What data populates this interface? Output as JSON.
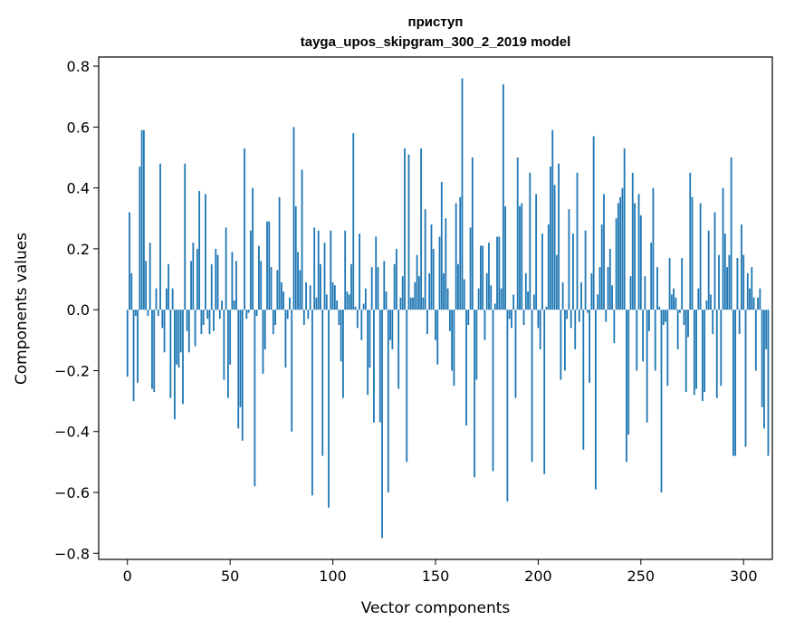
{
  "chart_data": {
    "type": "bar",
    "title": "приступ",
    "subtitle": "tayga_upos_skipgram_300_2_2019 model",
    "xlabel": "Vector components",
    "ylabel": "Components values",
    "xlim": [
      -14,
      314
    ],
    "ylim": [
      -0.82,
      0.83
    ],
    "xticks": [
      0,
      50,
      100,
      150,
      200,
      250,
      300
    ],
    "yticks": [
      -0.8,
      -0.6,
      -0.4,
      -0.2,
      0.0,
      0.2,
      0.4,
      0.6,
      0.8
    ],
    "xtick_labels": [
      "0",
      "50",
      "100",
      "150",
      "200",
      "250",
      "300"
    ],
    "ytick_labels": [
      "−0.8",
      "−0.6",
      "−0.4",
      "−0.2",
      "0.0",
      "0.2",
      "0.4",
      "0.6",
      "0.8"
    ],
    "bar_color": "#1f77b4",
    "grid": false,
    "legend": "none",
    "values": [
      -0.22,
      0.32,
      0.12,
      -0.3,
      -0.02,
      -0.24,
      0.47,
      0.59,
      0.59,
      0.16,
      -0.02,
      0.22,
      -0.26,
      -0.27,
      0.07,
      -0.02,
      0.48,
      -0.06,
      -0.14,
      0.07,
      0.15,
      -0.29,
      0.07,
      -0.36,
      -0.18,
      -0.19,
      -0.14,
      -0.31,
      0.48,
      -0.07,
      -0.14,
      0.16,
      0.22,
      -0.12,
      0.2,
      0.39,
      -0.08,
      -0.05,
      0.38,
      -0.03,
      -0.08,
      0.15,
      -0.07,
      0.2,
      0.18,
      -0.03,
      0.03,
      -0.23,
      0.27,
      -0.29,
      -0.18,
      0.19,
      0.03,
      0.16,
      -0.39,
      -0.32,
      -0.43,
      0.53,
      -0.03,
      -0.01,
      0.26,
      0.4,
      -0.58,
      -0.02,
      0.21,
      0.16,
      -0.21,
      -0.13,
      0.29,
      0.29,
      0.14,
      -0.08,
      -0.05,
      0.13,
      0.37,
      0.09,
      0.06,
      -0.19,
      -0.03,
      0.04,
      -0.4,
      0.6,
      0.34,
      0.19,
      0.13,
      0.46,
      -0.05,
      0.09,
      -0.03,
      0.08,
      -0.61,
      0.27,
      0.04,
      0.26,
      0.15,
      -0.48,
      0.22,
      0.05,
      -0.65,
      0.26,
      0.09,
      0.08,
      0.03,
      -0.05,
      -0.17,
      -0.29,
      0.26,
      0.06,
      0.05,
      0.15,
      0.58,
      0.01,
      -0.06,
      0.25,
      -0.1,
      0.02,
      0.07,
      -0.28,
      -0.19,
      0.14,
      -0.37,
      0.24,
      0.14,
      -0.37,
      -0.75,
      0.16,
      0.06,
      -0.6,
      -0.1,
      -0.13,
      0.15,
      0.2,
      -0.26,
      0.04,
      0.11,
      0.53,
      -0.5,
      0.51,
      0.04,
      0.04,
      0.09,
      0.18,
      0.11,
      0.53,
      0.04,
      0.33,
      -0.08,
      0.12,
      0.28,
      0.2,
      -0.1,
      -0.18,
      0.24,
      0.42,
      0.12,
      0.3,
      0.07,
      -0.07,
      -0.2,
      -0.25,
      0.35,
      0.15,
      0.37,
      0.76,
      0.1,
      -0.38,
      -0.05,
      0.27,
      0.5,
      -0.55,
      -0.23,
      0.07,
      0.21,
      0.21,
      -0.1,
      0.12,
      0.22,
      0.08,
      -0.53,
      0.02,
      0.24,
      0.24,
      0.07,
      0.74,
      0.34,
      -0.63,
      -0.03,
      -0.06,
      0.05,
      -0.29,
      0.5,
      0.34,
      0.35,
      -0.05,
      0.12,
      0.06,
      0.45,
      -0.5,
      0.05,
      0.38,
      -0.06,
      -0.13,
      0.25,
      -0.54,
      0.01,
      0.28,
      0.47,
      0.59,
      0.41,
      0.18,
      0.48,
      -0.23,
      0.09,
      -0.2,
      -0.03,
      0.33,
      -0.06,
      0.25,
      -0.13,
      0.45,
      -0.04,
      0.09,
      -0.46,
      0.26,
      -0.01,
      -0.24,
      0.12,
      0.57,
      -0.59,
      0.05,
      0.14,
      0.28,
      0.38,
      -0.04,
      0.14,
      0.2,
      0.08,
      -0.11,
      0.3,
      0.35,
      0.37,
      0.4,
      0.53,
      -0.5,
      -0.41,
      0.11,
      0.45,
      0.35,
      -0.2,
      0.38,
      0.31,
      -0.17,
      0.11,
      -0.37,
      -0.07,
      0.22,
      0.4,
      -0.2,
      0.14,
      0.01,
      -0.6,
      -0.05,
      -0.04,
      -0.25,
      0.17,
      0.05,
      0.07,
      0.04,
      -0.13,
      -0.01,
      0.17,
      -0.05,
      -0.27,
      -0.09,
      0.45,
      0.37,
      -0.28,
      -0.26,
      0.07,
      0.35,
      -0.3,
      -0.27,
      0.03,
      0.26,
      0.05,
      -0.08,
      0.32,
      -0.29,
      0.18,
      -0.25,
      0.4,
      0.25,
      0.14,
      0.18,
      0.5,
      -0.48,
      -0.48,
      0.17,
      -0.08,
      0.28,
      0.18,
      -0.45,
      0.12,
      0.07,
      0.14,
      0.04,
      -0.2,
      0.04,
      0.07,
      -0.32,
      -0.39,
      -0.13,
      -0.48
    ]
  }
}
